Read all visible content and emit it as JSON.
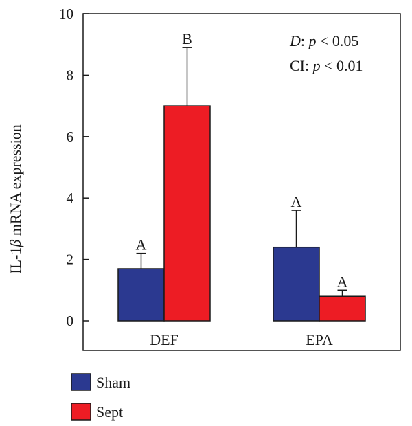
{
  "chart_data": {
    "type": "bar",
    "categories": [
      "DEF",
      "EPA"
    ],
    "series": [
      {
        "name": "Sham",
        "color": "#2b3990",
        "values": [
          1.7,
          2.4
        ],
        "errors": [
          0.5,
          1.2
        ],
        "labels": [
          "A",
          "A"
        ]
      },
      {
        "name": "Sept",
        "color": "#ed1c24",
        "values": [
          7.0,
          0.8
        ],
        "errors": [
          1.9,
          0.2
        ],
        "labels": [
          "B",
          "A"
        ]
      }
    ],
    "ylabel_prefix": "IL-1",
    "ylabel_symbol": "β",
    "ylabel_suffix": " mRNA expression",
    "ylim": [
      0,
      10
    ],
    "yticks": [
      "0",
      "2",
      "4",
      "6",
      "8",
      "10"
    ],
    "annotations": [
      {
        "term": "D",
        "colon": ": ",
        "var": "p",
        "rest": " < 0.05"
      },
      {
        "term": "CI",
        "colon": ": ",
        "var": "p",
        "rest": " < 0.01"
      }
    ],
    "legend_position": "bottom-left",
    "grid": false
  }
}
